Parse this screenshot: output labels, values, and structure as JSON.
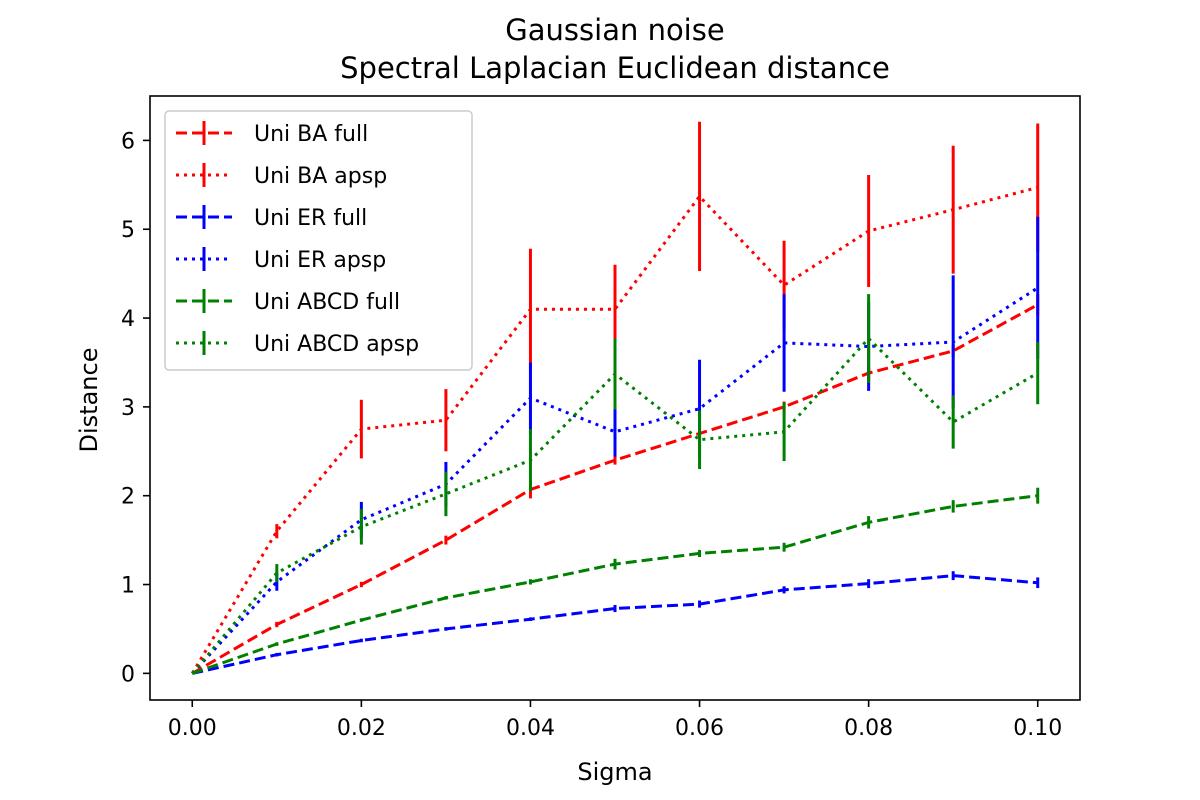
{
  "chart_data": {
    "type": "line",
    "title": "Gaussian noise",
    "subtitle": "Spectral Laplacian Euclidean distance",
    "xlabel": "Sigma",
    "ylabel": "Distance",
    "xlim": [
      -0.005,
      0.105
    ],
    "ylim": [
      -0.3,
      6.5
    ],
    "xticks": [
      0.0,
      0.02,
      0.04,
      0.06,
      0.08,
      0.1
    ],
    "xtick_labels": [
      "0.00",
      "0.02",
      "0.04",
      "0.06",
      "0.08",
      "0.10"
    ],
    "yticks": [
      0,
      1,
      2,
      3,
      4,
      5,
      6
    ],
    "ytick_labels": [
      "0",
      "1",
      "2",
      "3",
      "4",
      "5",
      "6"
    ],
    "grid": false,
    "legend_position": "top-left",
    "x": [
      0.0,
      0.01,
      0.02,
      0.03,
      0.04,
      0.05,
      0.06,
      0.07,
      0.08,
      0.09,
      0.1
    ],
    "series": [
      {
        "name": "Uni BA full",
        "color": "#ff0000",
        "linestyle": "dashed",
        "values": [
          0.0,
          0.55,
          1.0,
          1.5,
          2.07,
          2.4,
          2.7,
          3.0,
          3.38,
          3.63,
          4.15
        ],
        "errors": [
          0.0,
          0.03,
          0.03,
          0.05,
          0.1,
          0.05,
          0.06,
          0.06,
          0.07,
          0.07,
          0.12
        ]
      },
      {
        "name": "Uni BA apsp",
        "color": "#ff0000",
        "linestyle": "dotted",
        "values": [
          0.0,
          1.6,
          2.75,
          2.85,
          4.1,
          4.1,
          5.37,
          4.37,
          4.98,
          5.22,
          5.47
        ],
        "errors": [
          0.0,
          0.08,
          0.33,
          0.35,
          0.68,
          0.5,
          0.84,
          0.5,
          0.63,
          0.72,
          0.72
        ]
      },
      {
        "name": "Uni ER full",
        "color": "#0000ff",
        "linestyle": "dashed",
        "values": [
          0.0,
          0.21,
          0.37,
          0.5,
          0.61,
          0.73,
          0.78,
          0.94,
          1.01,
          1.1,
          1.02
        ],
        "errors": [
          0.0,
          0.02,
          0.02,
          0.02,
          0.02,
          0.04,
          0.04,
          0.04,
          0.05,
          0.05,
          0.06
        ]
      },
      {
        "name": "Uni ER apsp",
        "color": "#0000ff",
        "linestyle": "dotted",
        "values": [
          0.0,
          1.03,
          1.73,
          2.13,
          3.1,
          2.72,
          2.98,
          3.72,
          3.68,
          3.73,
          4.34
        ],
        "errors": [
          0.0,
          0.1,
          0.2,
          0.25,
          0.4,
          0.28,
          0.55,
          0.55,
          0.5,
          0.75,
          0.8
        ]
      },
      {
        "name": "Uni ABCD full",
        "color": "#008000",
        "linestyle": "dashed",
        "values": [
          0.0,
          0.33,
          0.6,
          0.85,
          1.03,
          1.23,
          1.35,
          1.42,
          1.7,
          1.88,
          2.0
        ],
        "errors": [
          0.0,
          0.02,
          0.02,
          0.02,
          0.03,
          0.06,
          0.04,
          0.05,
          0.07,
          0.07,
          0.09
        ]
      },
      {
        "name": "Uni ABCD apsp",
        "color": "#008000",
        "linestyle": "dotted",
        "values": [
          0.0,
          1.13,
          1.65,
          2.02,
          2.4,
          3.37,
          2.63,
          2.72,
          3.77,
          2.83,
          3.38
        ],
        "errors": [
          0.0,
          0.1,
          0.2,
          0.25,
          0.35,
          0.4,
          0.33,
          0.33,
          0.5,
          0.3,
          0.35
        ]
      }
    ]
  }
}
